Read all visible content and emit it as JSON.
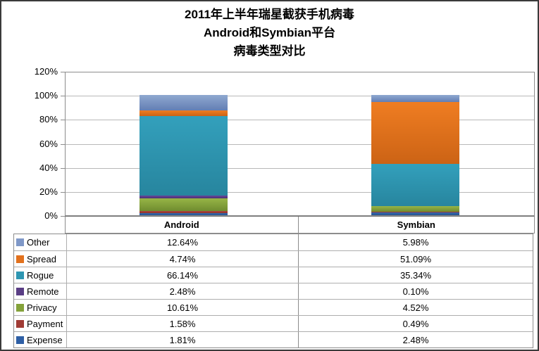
{
  "title": {
    "line1": "2011年上半年瑞星截获手机病毒",
    "line2": "Android和Symbian平台",
    "line3": "病毒类型对比"
  },
  "chart_data": {
    "type": "bar",
    "stacked": true,
    "title": "2011年上半年瑞星截获手机病毒 Android和Symbian平台 病毒类型对比",
    "categories": [
      "Android",
      "Symbian"
    ],
    "series": [
      {
        "name": "Other",
        "values": [
          12.64,
          5.98
        ],
        "labels": [
          "12.64%",
          "5.98%"
        ],
        "swatch": "#7f98c8",
        "color_light": "#8fa9d0",
        "color_dark": "#637eb4"
      },
      {
        "name": "Spread",
        "values": [
          4.74,
          51.09
        ],
        "labels": [
          "4.74%",
          "51.09%"
        ],
        "swatch": "#e2711d",
        "color_light": "#ef7d22",
        "color_dark": "#cc6315"
      },
      {
        "name": "Rogue",
        "values": [
          66.14,
          35.34
        ],
        "labels": [
          "66.14%",
          "35.34%"
        ],
        "swatch": "#2e96b2",
        "color_light": "#33a0bc",
        "color_dark": "#27859e"
      },
      {
        "name": "Remote",
        "values": [
          2.48,
          0.1
        ],
        "labels": [
          "2.48%",
          "0.10%"
        ],
        "swatch": "#5a3e85",
        "color_light": "#66479b",
        "color_dark": "#4c3374"
      },
      {
        "name": "Privacy",
        "values": [
          10.61,
          4.52
        ],
        "labels": [
          "10.61%",
          "4.52%"
        ],
        "swatch": "#84a23a",
        "color_light": "#97b546",
        "color_dark": "#6f8c2f"
      },
      {
        "name": "Payment",
        "values": [
          1.58,
          0.49
        ],
        "labels": [
          "1.58%",
          "0.49%"
        ],
        "swatch": "#a03b35",
        "color_light": "#af453d",
        "color_dark": "#8d322c"
      },
      {
        "name": "Expense",
        "values": [
          1.81,
          2.48
        ],
        "labels": [
          "1.81%",
          "2.48%"
        ],
        "swatch": "#2e5fa5",
        "color_light": "#3368b0",
        "color_dark": "#27538e"
      }
    ],
    "yticks": [
      "120%",
      "100%",
      "80%",
      "60%",
      "40%",
      "20%",
      "0%"
    ],
    "ylim": [
      0,
      120
    ],
    "grid": true,
    "legend_position": "table-left"
  }
}
